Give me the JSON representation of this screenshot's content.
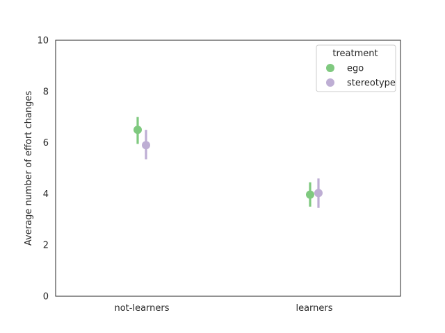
{
  "chart_data": {
    "type": "scatter",
    "style": "pointplot with error bars",
    "categories": [
      "not-learners",
      "learners"
    ],
    "ylabel": "Average number of effort changes",
    "xlabel": "",
    "ylim": [
      0,
      10
    ],
    "yticks": [
      0,
      2,
      4,
      6,
      8,
      10
    ],
    "grid": false,
    "legend": {
      "title": "treatment",
      "placement": "top-right"
    },
    "series": [
      {
        "name": "ego",
        "color": "#7fc97f",
        "values": [
          6.5,
          3.97
        ],
        "ci_low": [
          5.95,
          3.5
        ],
        "ci_high": [
          7.0,
          4.45
        ]
      },
      {
        "name": "stereotype",
        "color": "#beaed4",
        "values": [
          5.9,
          4.03
        ],
        "ci_low": [
          5.35,
          3.45
        ],
        "ci_high": [
          6.5,
          4.6
        ]
      }
    ]
  }
}
